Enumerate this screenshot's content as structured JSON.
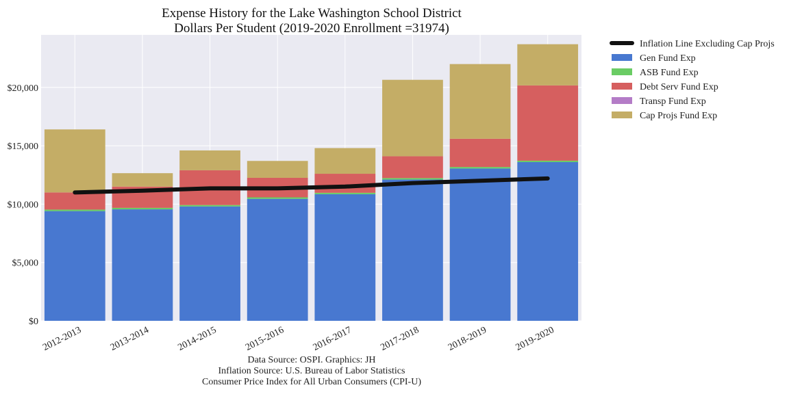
{
  "chart_data": {
    "type": "bar",
    "stacked": true,
    "title": "Expense History for the Lake Washington School District",
    "subtitle": "Dollars Per Student (2019-2020 Enrollment =31974)",
    "xlabel": "",
    "ylabel": "",
    "ylim": [
      0,
      24500
    ],
    "yticks": [
      "$0",
      "$5,000",
      "$10,000",
      "$15,000",
      "$20,000"
    ],
    "ytick_values": [
      0,
      5000,
      10000,
      15000,
      20000
    ],
    "categories": [
      "2012-2013",
      "2013-2014",
      "2014-2015",
      "2015-2016",
      "2016-2017",
      "2017-2018",
      "2018-2019",
      "2019-2020"
    ],
    "series": [
      {
        "name": "Gen Fund Exp",
        "color": "#4878d0",
        "values": [
          9400,
          9550,
          9800,
          10450,
          10850,
          12100,
          13050,
          13600
        ]
      },
      {
        "name": "ASB Fund Exp",
        "color": "#6acc64",
        "values": [
          130,
          130,
          120,
          130,
          120,
          130,
          130,
          120
        ]
      },
      {
        "name": "Debt Serv Fund Exp",
        "color": "#d65f5f",
        "values": [
          1470,
          1820,
          2980,
          1670,
          1630,
          1870,
          2420,
          6450
        ]
      },
      {
        "name": "Transp Fund Exp",
        "color": "#b47cc7",
        "values": [
          0,
          0,
          0,
          0,
          0,
          0,
          0,
          0
        ]
      },
      {
        "name": "Cap Projs Fund Exp",
        "color": "#c4ad66",
        "values": [
          5400,
          1150,
          1700,
          1450,
          2200,
          6550,
          6400,
          3530
        ]
      }
    ],
    "line": {
      "name": "Inflation Line Excluding Cap Projs",
      "color": "#111111",
      "values": [
        11000,
        11150,
        11350,
        11350,
        11500,
        11800,
        12000,
        12200
      ]
    },
    "grid": true,
    "legend_position": "outside-right",
    "footer": [
      "Data Source: OSPI. Graphics: JH",
      "Inflation Source: U.S. Bureau of Labor Statistics",
      "Consumer Price Index for All Urban Consumers (CPI-U)"
    ]
  }
}
